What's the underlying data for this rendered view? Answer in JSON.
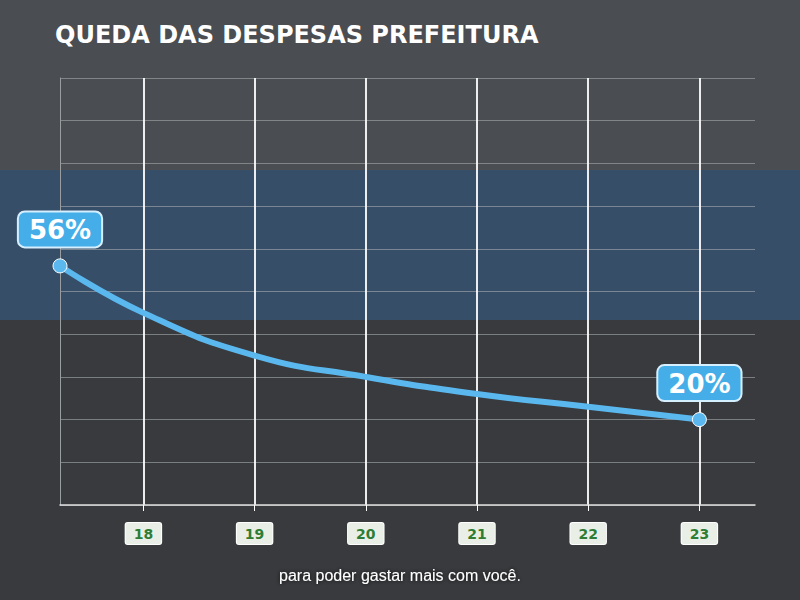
{
  "chart_data": {
    "type": "line",
    "title": "QUEDA DAS DESPESAS PREFEITURA",
    "annotations": [
      "para poder gastar mais com você."
    ],
    "x": [
      17.25,
      18,
      19,
      20,
      21,
      22,
      23
    ],
    "values": [
      56,
      45,
      35,
      30,
      26,
      23,
      20
    ],
    "value_labels": [
      "56%",
      null,
      null,
      null,
      null,
      null,
      "20%"
    ],
    "data_labels": true,
    "color": "#5bb8ef",
    "xlim": [
      17.25,
      23.5
    ],
    "xticks": [
      18,
      19,
      20,
      21,
      22,
      23
    ],
    "ylim": [
      0,
      100
    ],
    "yticks": [
      0,
      10,
      20,
      30,
      40,
      50,
      60,
      70,
      80,
      90,
      100
    ],
    "grid": true,
    "tick_labels": "x"
  }
}
